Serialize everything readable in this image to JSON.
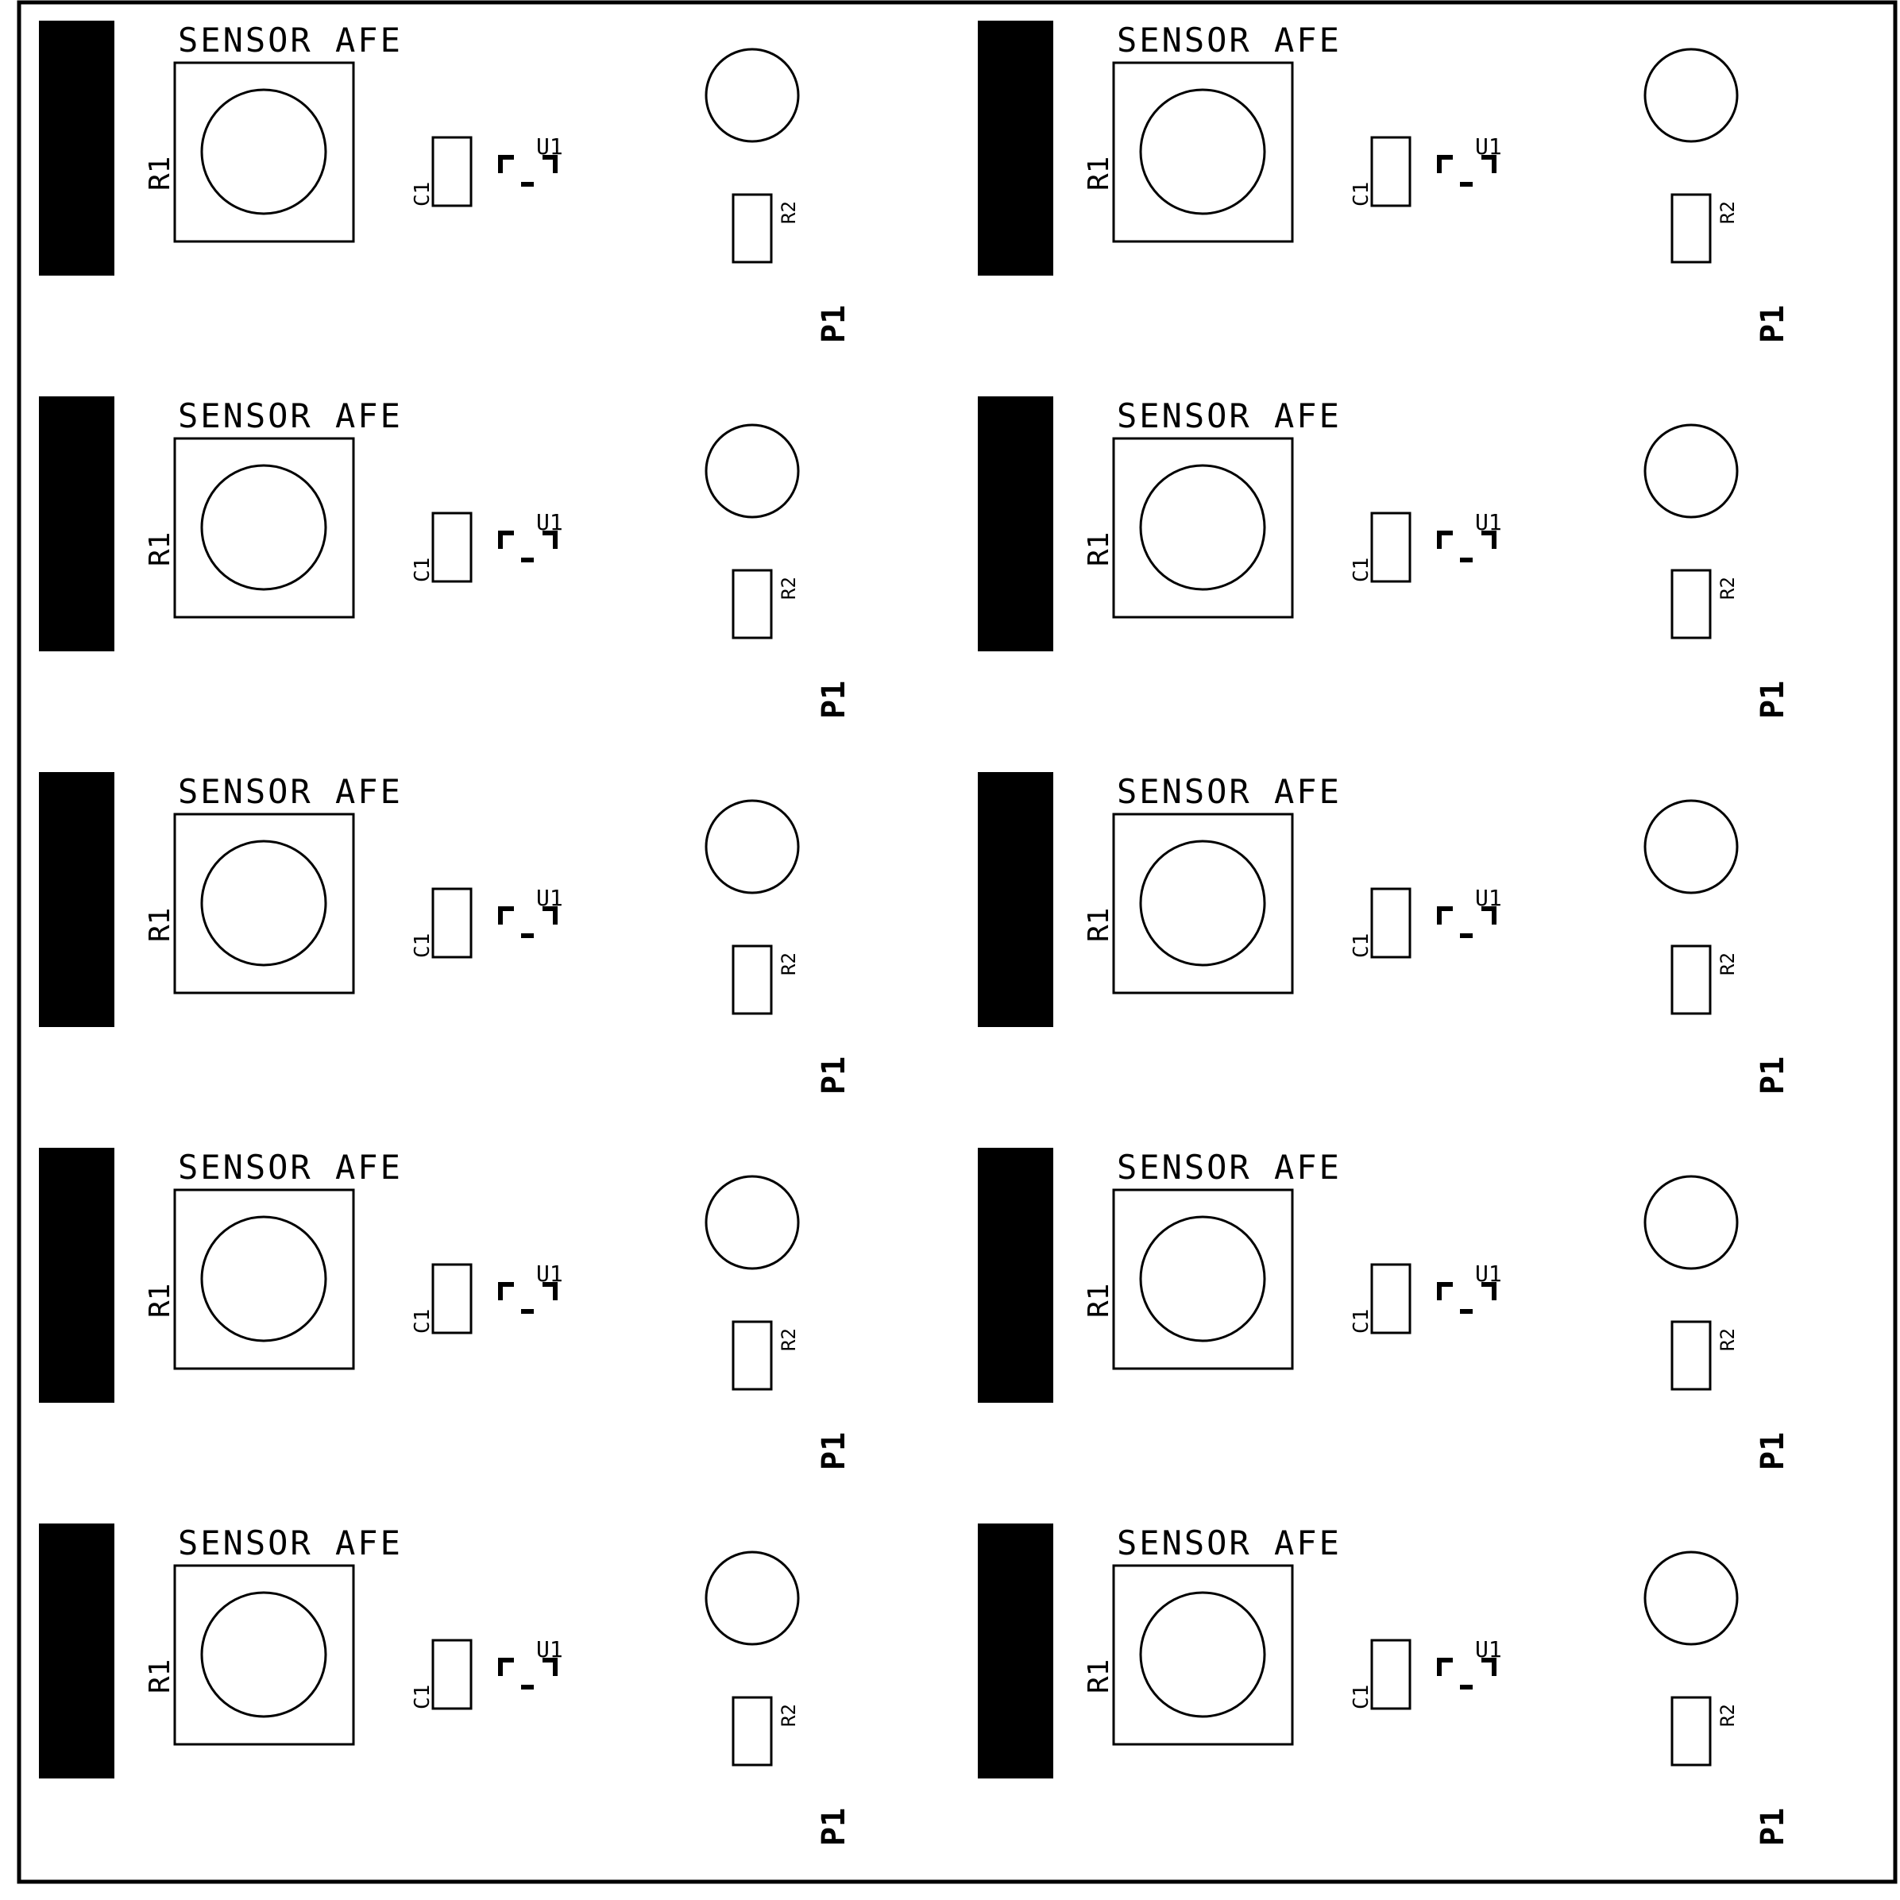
{
  "panel": {
    "columns": 2,
    "rows": 5,
    "board_label": "SENSOR AFE",
    "refdes": {
      "r1": "R1",
      "c1": "C1",
      "u1": "U1",
      "r2": "R2",
      "p1": "P1"
    }
  },
  "colors": {
    "ink": "#000000",
    "background": "#ffffff"
  }
}
